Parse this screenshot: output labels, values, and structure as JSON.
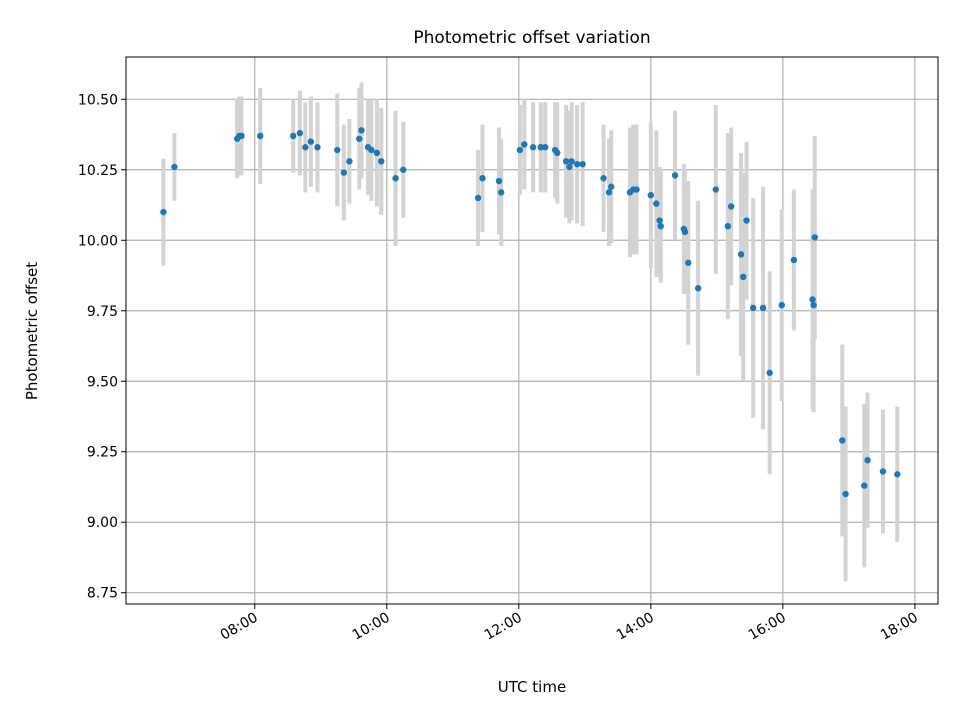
{
  "chart_data": {
    "type": "scatter",
    "title": "Photometric offset variation",
    "xlabel": "UTC time",
    "ylabel": "Photometric offset",
    "x_unit": "hours (UTC)",
    "xlim": [
      6.05,
      18.35
    ],
    "ylim": [
      8.71,
      10.65
    ],
    "x_ticks": [
      {
        "value": 8,
        "label": "08:00"
      },
      {
        "value": 10,
        "label": "10:00"
      },
      {
        "value": 12,
        "label": "12:00"
      },
      {
        "value": 14,
        "label": "14:00"
      },
      {
        "value": 16,
        "label": "16:00"
      },
      {
        "value": 18,
        "label": "18:00"
      }
    ],
    "y_ticks": [
      {
        "value": 8.75,
        "label": "8.75"
      },
      {
        "value": 9.0,
        "label": "9.00"
      },
      {
        "value": 9.25,
        "label": "9.25"
      },
      {
        "value": 9.5,
        "label": "9.50"
      },
      {
        "value": 9.75,
        "label": "9.75"
      },
      {
        "value": 10.0,
        "label": "10.00"
      },
      {
        "value": 10.25,
        "label": "10.25"
      },
      {
        "value": 10.5,
        "label": "10.50"
      }
    ],
    "grid": true,
    "marker_color": "#1f77b4",
    "errorbar_color": "#d3d3d3",
    "series": [
      {
        "x": [
          "06:37",
          "06:47",
          "07:44",
          "07:46",
          "07:48",
          "08:05",
          "08:35",
          "08:41",
          "08:46",
          "08:51",
          "08:57",
          "09:15",
          "09:21",
          "09:26",
          "09:35",
          "09:37",
          "09:43",
          "09:46",
          "09:51",
          "09:55",
          "10:08",
          "10:15",
          "11:23",
          "11:27",
          "11:42",
          "11:44",
          "12:01",
          "12:05",
          "12:13",
          "12:20",
          "12:24",
          "12:33",
          "12:35",
          "12:43",
          "12:46",
          "12:48",
          "12:53",
          "12:58",
          "13:17",
          "13:22",
          "13:24",
          "13:41",
          "13:44",
          "13:47",
          "14:00",
          "14:05",
          "14:08",
          "14:09",
          "14:22",
          "14:30",
          "14:31",
          "14:34",
          "14:43",
          "14:59",
          "15:10",
          "15:13",
          "15:22",
          "15:24",
          "15:27",
          "15:33",
          "15:42",
          "15:48",
          "15:59",
          "16:10",
          "16:27",
          "16:28",
          "16:29",
          "16:54",
          "16:57",
          "17:14",
          "17:17",
          "17:31",
          "17:44"
        ],
        "y": [
          10.1,
          10.26,
          10.36,
          10.37,
          10.37,
          10.37,
          10.37,
          10.38,
          10.33,
          10.35,
          10.33,
          10.32,
          10.24,
          10.28,
          10.36,
          10.39,
          10.33,
          10.32,
          10.31,
          10.28,
          10.22,
          10.25,
          10.15,
          10.22,
          10.21,
          10.17,
          10.32,
          10.34,
          10.33,
          10.33,
          10.33,
          10.32,
          10.31,
          10.28,
          10.26,
          10.28,
          10.27,
          10.27,
          10.22,
          10.17,
          10.19,
          10.17,
          10.18,
          10.18,
          10.16,
          10.13,
          10.07,
          10.05,
          10.23,
          10.04,
          10.03,
          9.92,
          9.83,
          10.18,
          10.05,
          10.12,
          9.95,
          9.87,
          10.07,
          9.76,
          9.76,
          9.53,
          9.77,
          9.93,
          9.79,
          9.77,
          10.01,
          9.29,
          9.1,
          9.13,
          9.22,
          9.18,
          9.17
        ],
        "yerr": [
          0.19,
          0.12,
          0.14,
          0.14,
          0.14,
          0.17,
          0.13,
          0.15,
          0.16,
          0.16,
          0.16,
          0.2,
          0.17,
          0.15,
          0.18,
          0.17,
          0.17,
          0.18,
          0.19,
          0.19,
          0.24,
          0.17,
          0.17,
          0.19,
          0.19,
          0.19,
          0.16,
          0.16,
          0.16,
          0.16,
          0.16,
          0.17,
          0.18,
          0.2,
          0.2,
          0.21,
          0.21,
          0.22,
          0.19,
          0.19,
          0.2,
          0.23,
          0.23,
          0.23,
          0.26,
          0.26,
          0.19,
          0.2,
          0.23,
          0.23,
          0.22,
          0.29,
          0.31,
          0.3,
          0.33,
          0.28,
          0.36,
          0.37,
          0.28,
          0.39,
          0.43,
          0.36,
          0.34,
          0.25,
          0.39,
          0.38,
          0.36,
          0.34,
          0.31,
          0.29,
          0.24,
          0.22,
          0.24
        ]
      }
    ]
  }
}
